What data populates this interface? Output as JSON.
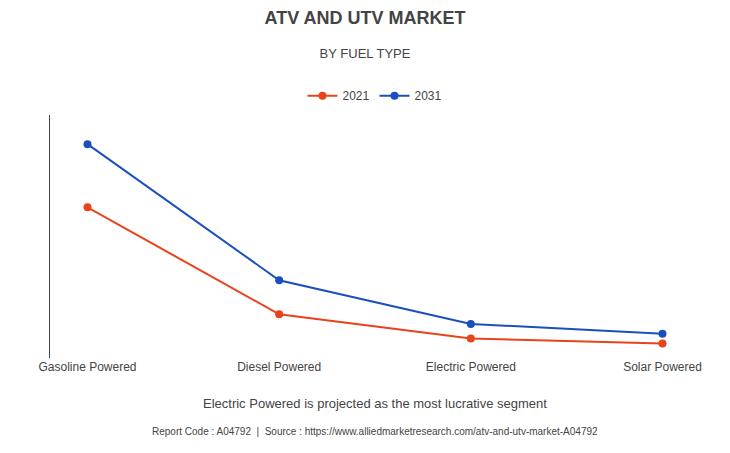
{
  "chart_data": {
    "type": "line",
    "title": "ATV AND UTV MARKET",
    "subtitle": "BY FUEL TYPE",
    "categories": [
      "Gasoline Powered",
      "Diesel Powered",
      "Electric Powered",
      "Solar Powered"
    ],
    "series": [
      {
        "name": "2021",
        "color": "#E8431A",
        "values": [
          62,
          18,
          8,
          6
        ]
      },
      {
        "name": "2031",
        "color": "#1B4FBF",
        "values": [
          88,
          32,
          14,
          10
        ]
      }
    ],
    "ylim": [
      0,
      100
    ],
    "yticks": [],
    "grid": false,
    "tick_labels": "x",
    "legend": "top",
    "marker": "circle",
    "annotations": [
      "Electric Powered is projected as the most lucrative segment",
      "Report Code : A04792  |  Source : https://www.alliedmarketresearch.com/atv-and-utv-market-A04792"
    ]
  }
}
